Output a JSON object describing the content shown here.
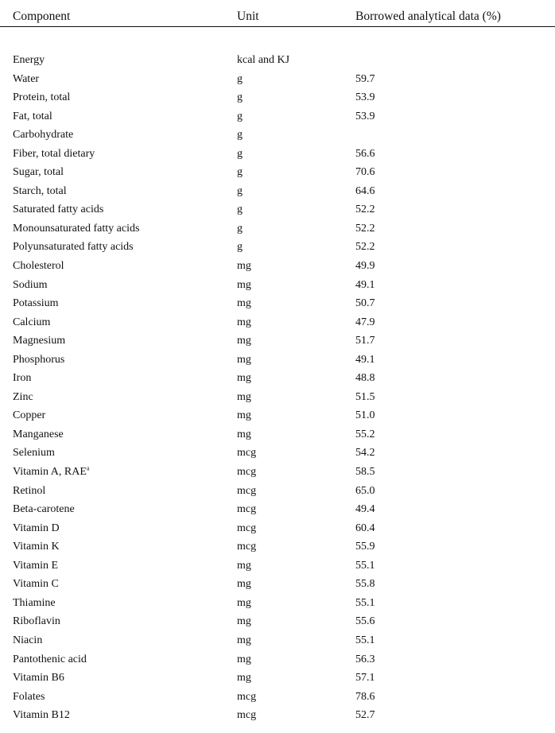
{
  "table": {
    "headers": {
      "component": "Component",
      "unit": "Unit",
      "value": "Borrowed analytical data (%)"
    },
    "rows": [
      {
        "component": "Energy",
        "unit": "kcal and KJ",
        "value": ""
      },
      {
        "component": "Water",
        "unit": "g",
        "value": "59.7"
      },
      {
        "component": "Protein, total",
        "unit": "g",
        "value": "53.9"
      },
      {
        "component": "Fat, total",
        "unit": "g",
        "value": "53.9"
      },
      {
        "component": "Carbohydrate",
        "unit": "g",
        "value": ""
      },
      {
        "component": "Fiber, total dietary",
        "unit": "g",
        "value": "56.6"
      },
      {
        "component": "Sugar, total",
        "unit": "g",
        "value": "70.6"
      },
      {
        "component": "Starch, total",
        "unit": "g",
        "value": "64.6"
      },
      {
        "component": "Saturated fatty acids",
        "unit": "g",
        "value": "52.2"
      },
      {
        "component": "Monounsaturated fatty acids",
        "unit": "g",
        "value": "52.2"
      },
      {
        "component": "Polyunsaturated fatty acids",
        "unit": "g",
        "value": "52.2"
      },
      {
        "component": "Cholesterol",
        "unit": "mg",
        "value": "49.9"
      },
      {
        "component": "Sodium",
        "unit": "mg",
        "value": "49.1"
      },
      {
        "component": "Potassium",
        "unit": "mg",
        "value": "50.7"
      },
      {
        "component": "Calcium",
        "unit": "mg",
        "value": "47.9"
      },
      {
        "component": "Magnesium",
        "unit": "mg",
        "value": "51.7"
      },
      {
        "component": "Phosphorus",
        "unit": "mg",
        "value": "49.1"
      },
      {
        "component": "Iron",
        "unit": "mg",
        "value": "48.8"
      },
      {
        "component": "Zinc",
        "unit": "mg",
        "value": "51.5"
      },
      {
        "component": "Copper",
        "unit": "mg",
        "value": "51.0"
      },
      {
        "component": "Manganese",
        "unit": "mg",
        "value": "55.2"
      },
      {
        "component": "Selenium",
        "unit": "mcg",
        "value": "54.2"
      },
      {
        "component": "Vitamin A, RAE",
        "unit": "mcg",
        "value": "58.5",
        "sup": "a"
      },
      {
        "component": "Retinol",
        "unit": "mcg",
        "value": "65.0"
      },
      {
        "component": "Beta-carotene",
        "unit": "mcg",
        "value": "49.4"
      },
      {
        "component": "Vitamin D",
        "unit": "mcg",
        "value": "60.4"
      },
      {
        "component": "Vitamin K",
        "unit": "mcg",
        "value": "55.9"
      },
      {
        "component": "Vitamin E",
        "unit": "mg",
        "value": "55.1"
      },
      {
        "component": "Vitamin C",
        "unit": "mg",
        "value": "55.8"
      },
      {
        "component": "Thiamine",
        "unit": "mg",
        "value": "55.1"
      },
      {
        "component": "Riboflavin",
        "unit": "mg",
        "value": "55.6"
      },
      {
        "component": "Niacin",
        "unit": "mg",
        "value": "55.1"
      },
      {
        "component": "Pantothenic acid",
        "unit": "mg",
        "value": "56.3"
      },
      {
        "component": "Vitamin B6",
        "unit": "mg",
        "value": "57.1"
      },
      {
        "component": "Folates",
        "unit": "mcg",
        "value": "78.6"
      },
      {
        "component": "Vitamin B12",
        "unit": "mcg",
        "value": "52.7"
      }
    ]
  }
}
